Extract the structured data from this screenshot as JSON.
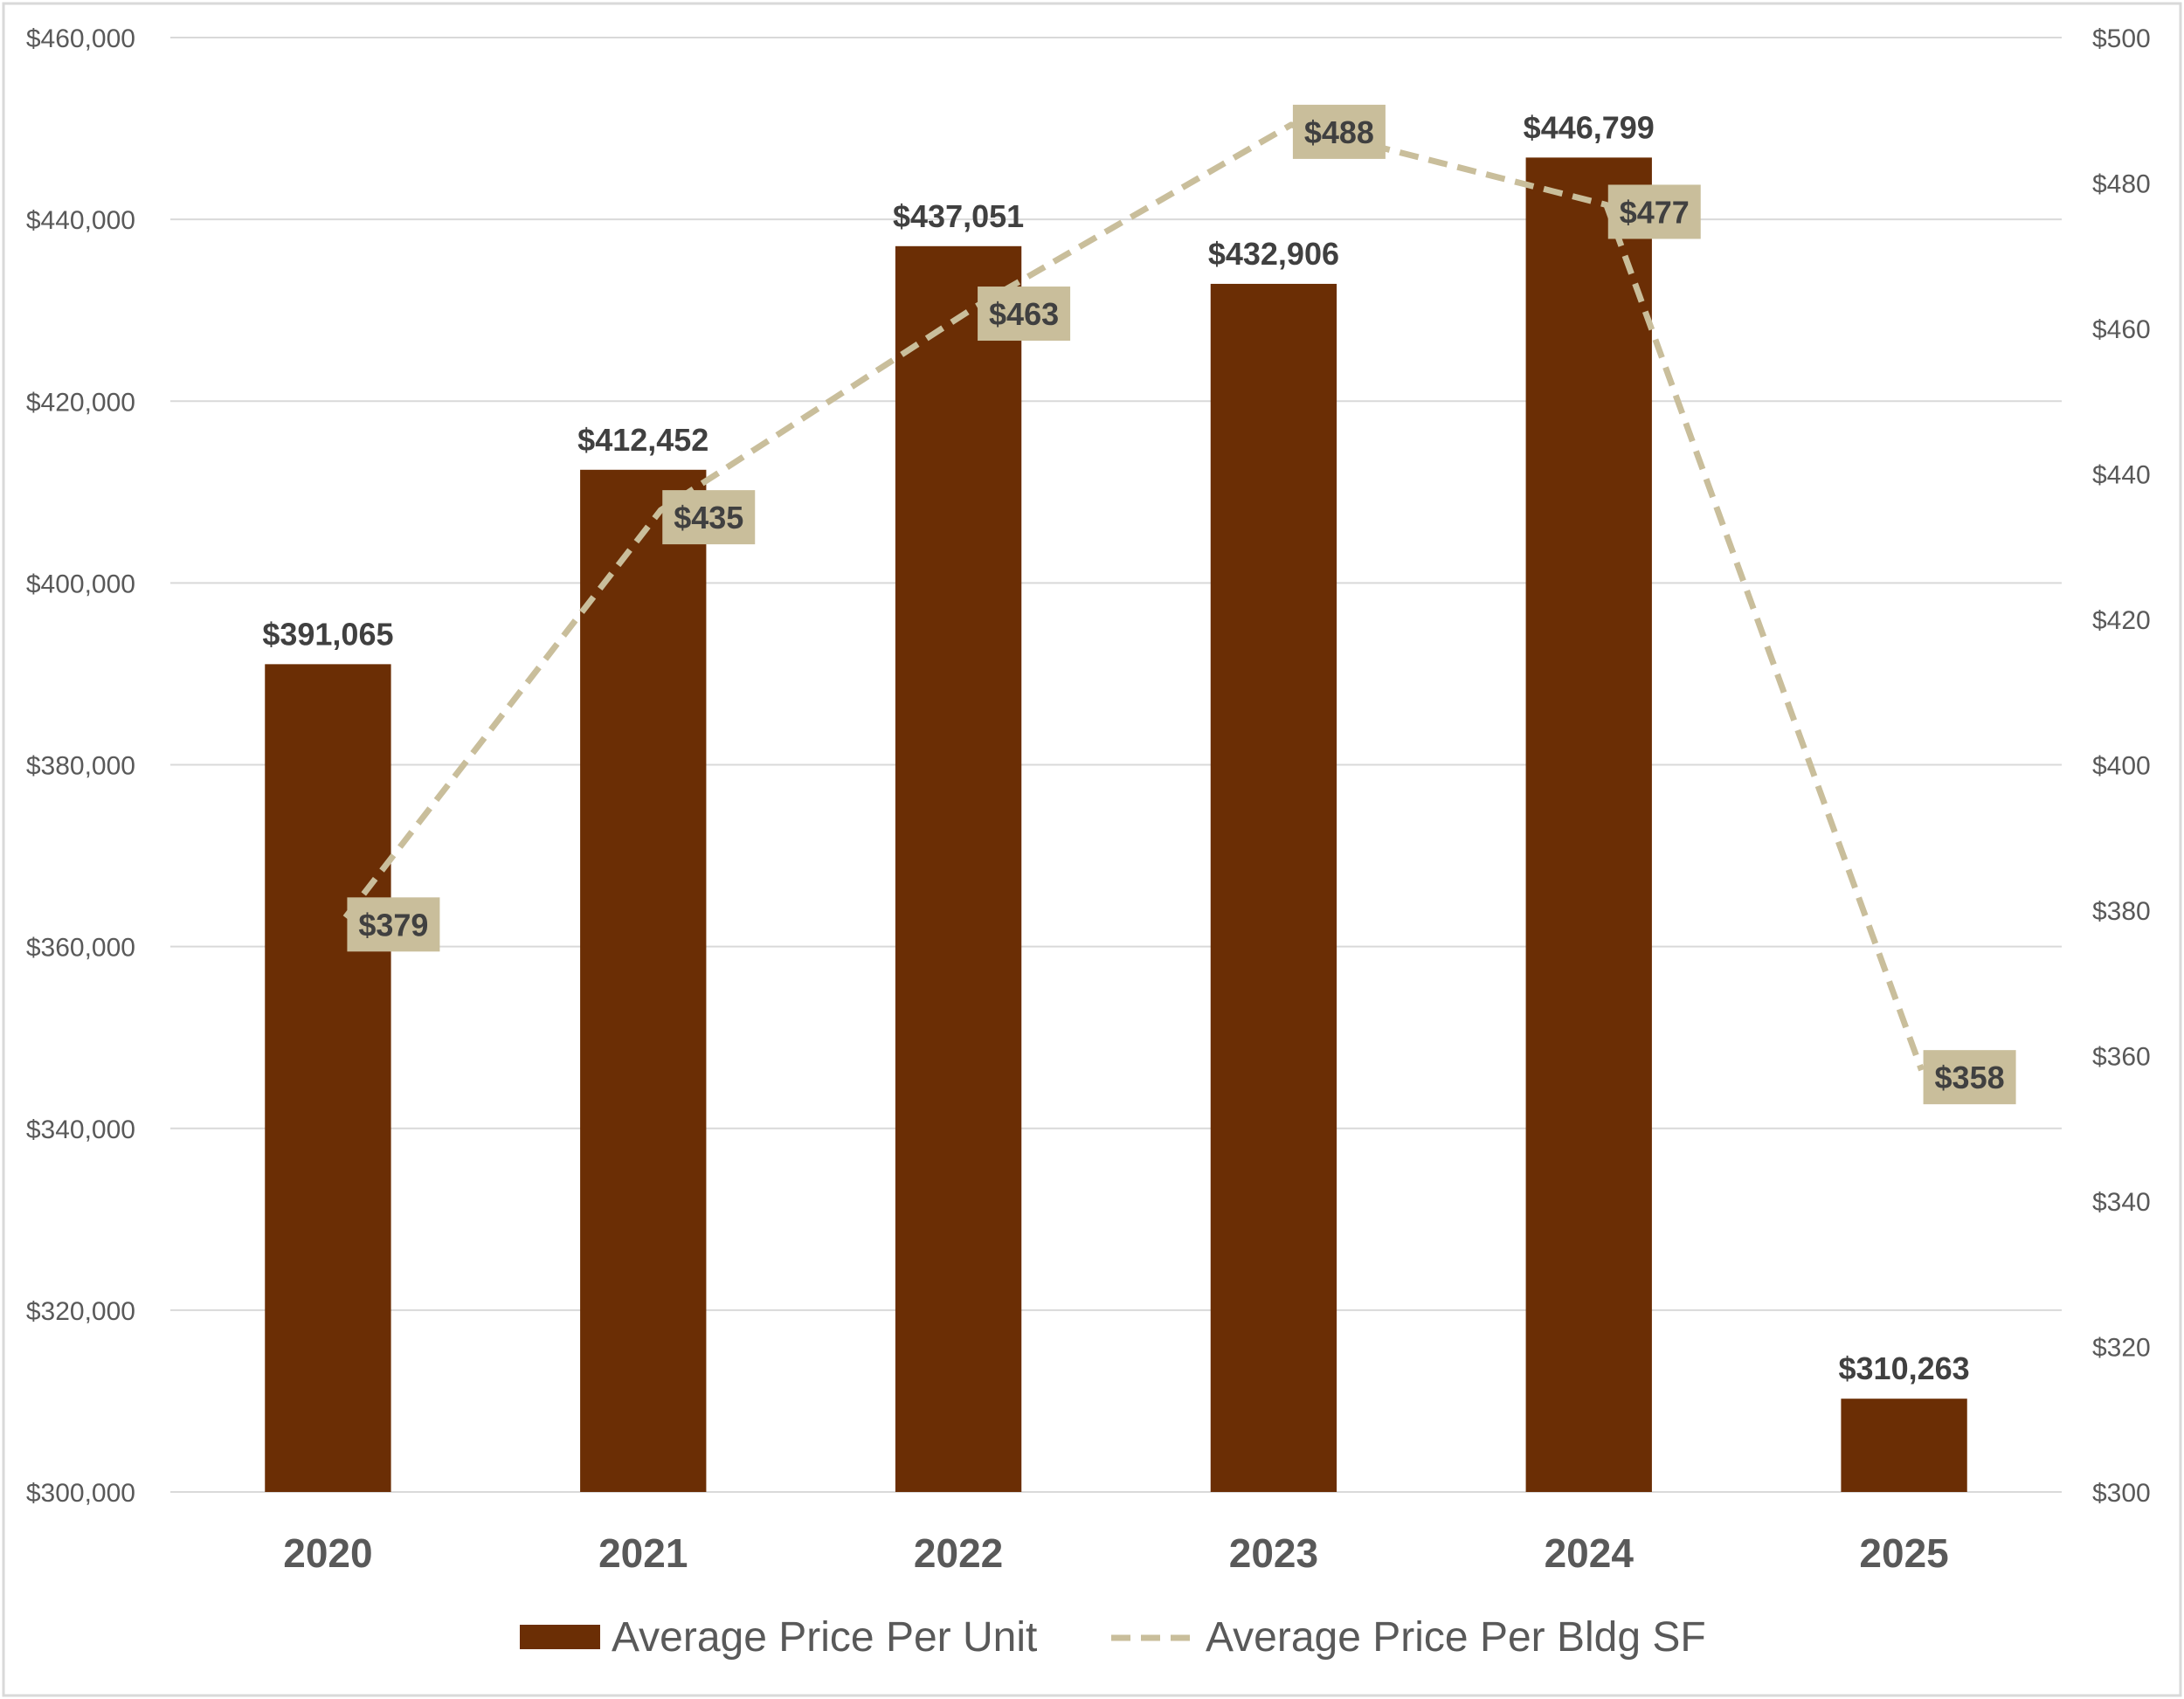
{
  "chart_data": {
    "type": "bar",
    "categories": [
      "2020",
      "2021",
      "2022",
      "2023",
      "2024",
      "2025"
    ],
    "series": [
      {
        "name": "Average Price Per Unit",
        "type": "bar",
        "axis": "left",
        "values": [
          391065,
          412452,
          437051,
          432906,
          446799,
          310263
        ],
        "labels": [
          "$391,065",
          "$412,452",
          "$437,051",
          "$432,906",
          "$446,799",
          "$310,263"
        ]
      },
      {
        "name": "Average Price Per Bldg SF",
        "type": "line",
        "style": "dashed",
        "axis": "right",
        "values": [
          379,
          435,
          463,
          488,
          477,
          358
        ],
        "labels": [
          "$379",
          "$435",
          "$463",
          "$488",
          "$477",
          "$358"
        ]
      }
    ],
    "left_axis": {
      "ylim": [
        300000,
        460000
      ],
      "ticks": [
        "$300,000",
        "$320,000",
        "$340,000",
        "$360,000",
        "$380,000",
        "$400,000",
        "$420,000",
        "$440,000",
        "$460,000"
      ]
    },
    "right_axis": {
      "ylim": [
        300,
        500
      ],
      "ticks": [
        "$300",
        "$320",
        "$340",
        "$360",
        "$380",
        "$400",
        "$420",
        "$440",
        "$460",
        "$480",
        "$500"
      ]
    },
    "grid": true,
    "legend_position": "bottom",
    "colors": {
      "bar": "#6B2E05",
      "line": "#C9BE9B",
      "label_box": "#C9BE9B",
      "grid": "#D9D9D9",
      "text": "#595959"
    }
  }
}
